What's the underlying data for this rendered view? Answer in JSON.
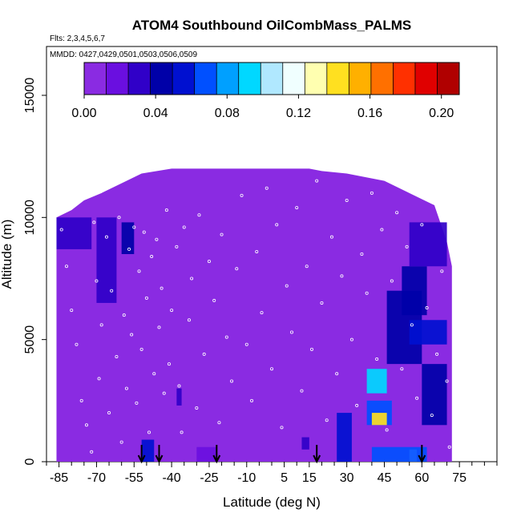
{
  "chart_data": {
    "type": "heatmap",
    "title": "ATOM4 Southbound OilCombMass_PALMS",
    "flights_label": "Flts: 2,3,4,5,6,7",
    "dates_label": "MMDD: 0427,0429,0501,0503,0506,0509",
    "xlabel": "Latitude (deg N)",
    "ylabel": "Altitude (m)",
    "xlim": [
      -90,
      90
    ],
    "ylim": [
      0,
      17000
    ],
    "x_ticks": [
      -85,
      -70,
      -55,
      -40,
      -25,
      -10,
      5,
      15,
      30,
      45,
      60,
      75
    ],
    "y_ticks": [
      0,
      5000,
      10000,
      15000
    ],
    "colorbar": {
      "ticks": [
        0.0,
        0.04,
        0.08,
        0.12,
        0.16,
        0.2
      ],
      "tick_labels": [
        "0.00",
        "0.04",
        "0.08",
        "0.12",
        "0.16",
        "0.20"
      ],
      "range": [
        0.0,
        0.21
      ],
      "colors": [
        "#8a2be2",
        "#6a0fe0",
        "#3000c8",
        "#0000a8",
        "#0010d0",
        "#0050ff",
        "#00a0ff",
        "#00d8ff",
        "#b0e8ff",
        "#f0ffff",
        "#ffffb0",
        "#ffe020",
        "#ffb000",
        "#ff7000",
        "#ff3000",
        "#e00000",
        "#b00000"
      ]
    },
    "field_extent": {
      "lat_min": -86,
      "lat_max": 72,
      "ceiling_segments": [
        [
          -86,
          10000
        ],
        [
          -80,
          10300
        ],
        [
          -75,
          10700
        ],
        [
          -68,
          11000
        ],
        [
          -58,
          11500
        ],
        [
          -52,
          11800
        ],
        [
          -40,
          12000
        ],
        [
          -10,
          12000
        ],
        [
          15,
          12000
        ],
        [
          20,
          11900
        ],
        [
          30,
          11800
        ],
        [
          45,
          11500
        ],
        [
          55,
          11000
        ],
        [
          65,
          10500
        ],
        [
          70,
          9000
        ],
        [
          72,
          8000
        ]
      ]
    },
    "enhanced_regions": [
      {
        "lat": [
          -86,
          -72
        ],
        "alt": [
          8700,
          10000
        ],
        "value": 0.035
      },
      {
        "lat": [
          -70,
          -62
        ],
        "alt": [
          6500,
          10000
        ],
        "value": 0.03
      },
      {
        "lat": [
          -60,
          -55
        ],
        "alt": [
          8500,
          9800
        ],
        "value": 0.04
      },
      {
        "lat": [
          -52,
          -47
        ],
        "alt": [
          0,
          900
        ],
        "value": 0.05
      },
      {
        "lat": [
          -38,
          -36
        ],
        "alt": [
          2300,
          3000
        ],
        "value": 0.025
      },
      {
        "lat": [
          -30,
          -22
        ],
        "alt": [
          0,
          600
        ],
        "value": 0.02
      },
      {
        "lat": [
          12,
          15
        ],
        "alt": [
          500,
          1000
        ],
        "value": 0.035
      },
      {
        "lat": [
          26,
          32
        ],
        "alt": [
          0,
          2000
        ],
        "value": 0.05
      },
      {
        "lat": [
          38,
          46
        ],
        "alt": [
          2800,
          3800
        ],
        "value": 0.09
      },
      {
        "lat": [
          38,
          48
        ],
        "alt": [
          1500,
          2500
        ],
        "value": 0.07
      },
      {
        "lat": [
          40,
          46
        ],
        "alt": [
          1500,
          2000
        ],
        "value": 0.14
      },
      {
        "lat": [
          55,
          58
        ],
        "alt": [
          0,
          500
        ],
        "value": 0.12
      },
      {
        "lat": [
          40,
          62
        ],
        "alt": [
          0,
          600
        ],
        "value": 0.07
      },
      {
        "lat": [
          46,
          60
        ],
        "alt": [
          4000,
          7000
        ],
        "value": 0.045
      },
      {
        "lat": [
          52,
          62
        ],
        "alt": [
          6000,
          8000
        ],
        "value": 0.045
      },
      {
        "lat": [
          55,
          70
        ],
        "alt": [
          4800,
          5800
        ],
        "value": 0.06
      },
      {
        "lat": [
          60,
          70
        ],
        "alt": [
          1500,
          4000
        ],
        "value": 0.045
      },
      {
        "lat": [
          55,
          70
        ],
        "alt": [
          8000,
          9800
        ],
        "value": 0.03
      }
    ],
    "sample_points": [
      [
        -84,
        9500
      ],
      [
        -82,
        8000
      ],
      [
        -80,
        6200
      ],
      [
        -78,
        4800
      ],
      [
        -76,
        2500
      ],
      [
        -74,
        1500
      ],
      [
        -72,
        400
      ],
      [
        -71,
        9800
      ],
      [
        -70,
        7400
      ],
      [
        -69,
        3400
      ],
      [
        -68,
        5600
      ],
      [
        -66,
        9200
      ],
      [
        -65,
        2000
      ],
      [
        -64,
        7000
      ],
      [
        -62,
        4300
      ],
      [
        -61,
        10000
      ],
      [
        -60,
        800
      ],
      [
        -59,
        6000
      ],
      [
        -58,
        3000
      ],
      [
        -57,
        8700
      ],
      [
        -56,
        5200
      ],
      [
        -55,
        9600
      ],
      [
        -54,
        2400
      ],
      [
        -53,
        7800
      ],
      [
        -52,
        4600
      ],
      [
        -51,
        9400
      ],
      [
        -50,
        6700
      ],
      [
        -49,
        1200
      ],
      [
        -48,
        8400
      ],
      [
        -47,
        3600
      ],
      [
        -46,
        9100
      ],
      [
        -45,
        5500
      ],
      [
        -44,
        7100
      ],
      [
        -43,
        2800
      ],
      [
        -42,
        10300
      ],
      [
        -41,
        4000
      ],
      [
        -40,
        6200
      ],
      [
        -38,
        8800
      ],
      [
        -37,
        3100
      ],
      [
        -36,
        1200
      ],
      [
        -35,
        9600
      ],
      [
        -33,
        5800
      ],
      [
        -32,
        7500
      ],
      [
        -30,
        2200
      ],
      [
        -29,
        10100
      ],
      [
        -27,
        4400
      ],
      [
        -25,
        8200
      ],
      [
        -23,
        6600
      ],
      [
        -21,
        1600
      ],
      [
        -20,
        9300
      ],
      [
        -18,
        5100
      ],
      [
        -16,
        3300
      ],
      [
        -14,
        7900
      ],
      [
        -12,
        10900
      ],
      [
        -10,
        4800
      ],
      [
        -8,
        2500
      ],
      [
        -6,
        8600
      ],
      [
        -4,
        6100
      ],
      [
        -2,
        11200
      ],
      [
        0,
        3800
      ],
      [
        2,
        9700
      ],
      [
        4,
        1400
      ],
      [
        6,
        7200
      ],
      [
        8,
        5300
      ],
      [
        10,
        10400
      ],
      [
        12,
        2900
      ],
      [
        14,
        8000
      ],
      [
        16,
        4600
      ],
      [
        18,
        11500
      ],
      [
        20,
        6500
      ],
      [
        22,
        1700
      ],
      [
        24,
        9200
      ],
      [
        26,
        3600
      ],
      [
        28,
        7600
      ],
      [
        30,
        10700
      ],
      [
        32,
        5000
      ],
      [
        34,
        2300
      ],
      [
        36,
        8500
      ],
      [
        38,
        6900
      ],
      [
        40,
        11000
      ],
      [
        42,
        4200
      ],
      [
        44,
        9500
      ],
      [
        46,
        1300
      ],
      [
        48,
        7400
      ],
      [
        50,
        10200
      ],
      [
        52,
        3800
      ],
      [
        54,
        8800
      ],
      [
        56,
        5600
      ],
      [
        58,
        2600
      ],
      [
        60,
        9700
      ],
      [
        62,
        6300
      ],
      [
        64,
        1900
      ],
      [
        66,
        4400
      ],
      [
        68,
        7800
      ],
      [
        70,
        3300
      ],
      [
        71,
        600
      ]
    ],
    "flight_markers_lat": [
      -52,
      -45,
      -22,
      18,
      60
    ]
  }
}
